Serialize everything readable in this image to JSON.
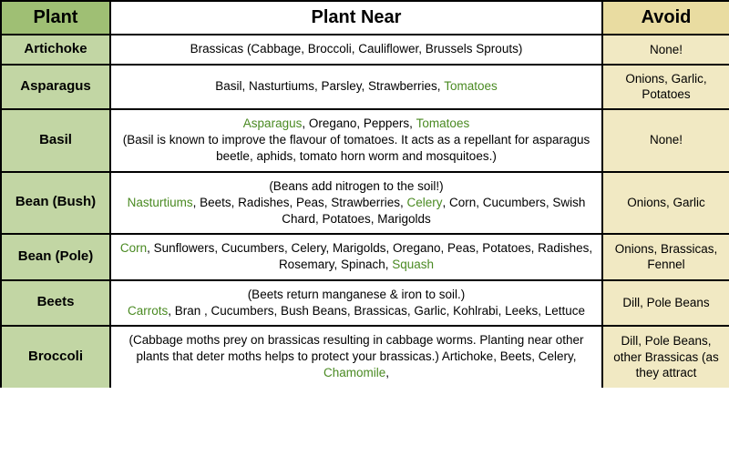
{
  "headers": {
    "plant": "Plant",
    "near": "Plant Near",
    "avoid": "Avoid"
  },
  "colors": {
    "header_plant_bg": "#9fbf74",
    "header_near_bg": "#ffffff",
    "header_avoid_bg": "#e9dca1",
    "row_plant_bg": "#c2d6a4",
    "row_near_bg": "#ffffff",
    "row_avoid_bg": "#f1e9c3",
    "border": "#000000",
    "highlight_text": "#4a8a22",
    "body_text": "#1a1a1a"
  },
  "typography": {
    "header_fontsize": 20,
    "plant_fontsize": 15,
    "cell_fontsize": 13.5,
    "font_family": "Arial"
  },
  "column_widths": {
    "plant": 120,
    "near": 540,
    "avoid": 140
  },
  "rows": [
    {
      "plant": "Artichoke",
      "near_plain": "Brassicas (Cabbage, Broccoli, Cauliflower, Brussels Sprouts)",
      "avoid": "None!"
    },
    {
      "plant": "Asparagus",
      "near_pre": "Basil, Nasturtiums, Parsley, Strawberries, ",
      "near_hl1": "Tomatoes",
      "avoid": "Onions, Garlic, Potatoes"
    },
    {
      "plant": "Basil",
      "near_hl1": "Asparagus",
      "near_mid1": ", Oregano, Peppers, ",
      "near_hl2": "Tomatoes",
      "near_note": "(Basil is known to improve the flavour of tomatoes.  It acts as a repellant for asparagus beetle, aphids, tomato horn worm and mosquitoes.)",
      "avoid": "None!"
    },
    {
      "plant": "Bean (Bush)",
      "near_note_top": "(Beans add nitrogen to the soil!)",
      "near_hl1": "Nasturtiums",
      "near_mid1": ", Beets, Radishes, Peas, Strawberries, ",
      "near_hl2": "Celery",
      "near_mid2": ", Corn, Cucumbers, Swish Chard, Potatoes, Marigolds",
      "avoid": "Onions, Garlic"
    },
    {
      "plant": "Bean (Pole)",
      "near_hl1": "Corn",
      "near_mid1": ", Sunflowers, Cucumbers, Celery, Marigolds, Oregano, Peas, Potatoes, Radishes, Rosemary, Spinach, ",
      "near_hl2": "Squash",
      "avoid": "Onions, Brassicas, Fennel"
    },
    {
      "plant": "Beets",
      "near_note_top": "(Beets return manganese & iron to soil.)",
      "near_hl1": "Carrots",
      "near_mid1": ", Bran , Cucumbers, Bush Beans, Brassicas, Garlic, Kohlrabi, Leeks, Lettuce",
      "avoid": "Dill, Pole Beans"
    },
    {
      "plant": "Broccoli",
      "near_note_top": "(Cabbage moths prey on brassicas resulting in cabbage worms. Planting near other plants that deter moths helps to protect your brassicas.)  Artichoke, Beets, Celery, ",
      "near_hl1": "Chamomile",
      "near_mid1": ",",
      "avoid": "Dill, Pole Beans, other Brassicas (as they attract"
    }
  ]
}
